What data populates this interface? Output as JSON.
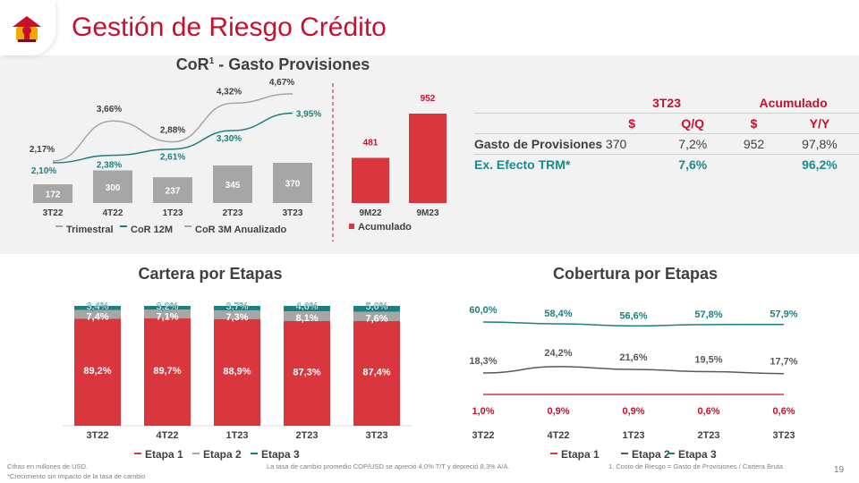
{
  "header": {
    "title": "Gestión de Riesgo Crédito"
  },
  "cor_chart": {
    "title_main": "CoR",
    "title_sup": "1",
    "title_rest": " - Gasto Provisiones"
  },
  "cartera_title": "Cartera por Etapas",
  "cobertura_title": "Cobertura por Etapas",
  "table": {
    "group1": "3T23",
    "group2": "Acumulado",
    "sub": [
      "$",
      "Q/Q",
      "$",
      "Y/Y"
    ],
    "rows": [
      {
        "label": "Gasto de Provisiones",
        "c1": "370",
        "c2": "7,2%",
        "c3": "952",
        "c4": "97,8%"
      },
      {
        "label": "Ex. Efecto TRM*",
        "c1": "",
        "c2": "7,6%",
        "c3": "",
        "c4": "96,2%"
      }
    ]
  },
  "footer": {
    "note1": "Cifras en millones de USD.",
    "note2": "*Crecimiento sin impacto de la tasa de cambio",
    "note3": "La tasa de cambio promedio COP/USD se apreció 4,0% T/T y depreció 8,3% A/A.",
    "note4": "1. Costo de Riesgo = Gasto de Provisiones / Cartera Bruta",
    "page": "19"
  },
  "colors": {
    "red": "#d9363e",
    "gray": "#a6a6a6",
    "teal": "#1b7f7f",
    "brand": "#c8102e"
  },
  "chart_data": [
    {
      "type": "bar",
      "categories": [
        "3T22",
        "4T22",
        "1T23",
        "2T23",
        "3T23"
      ],
      "series": [
        {
          "name": "Trimestral",
          "values": [
            172,
            300,
            237,
            345,
            370
          ],
          "labels": [
            "172",
            "300",
            "237",
            "345",
            "370"
          ]
        },
        {
          "name": "CoR 12M",
          "values": [
            2.1,
            2.38,
            2.61,
            3.3,
            3.95
          ],
          "labels": [
            "2,10%",
            "2,38%",
            "2,61%",
            "3,30%",
            "3,95%"
          ]
        },
        {
          "name": "CoR 3M Anualizado",
          "values": [
            2.17,
            3.66,
            2.88,
            4.32,
            4.67
          ],
          "labels": [
            "2,17%",
            "3,66%",
            "2,88%",
            "4,32%",
            "4,67%"
          ]
        }
      ]
    },
    {
      "type": "bar",
      "categories": [
        "9M22",
        "9M23"
      ],
      "series": [
        {
          "name": "Acumulado",
          "values": [
            481,
            952
          ],
          "labels": [
            "481",
            "952"
          ]
        }
      ]
    },
    {
      "type": "bar",
      "stacked": true,
      "categories": [
        "3T22",
        "4T22",
        "1T23",
        "2T23",
        "3T23"
      ],
      "series": [
        {
          "name": "Etapa 1",
          "values": [
            89.2,
            89.7,
            88.9,
            87.3,
            87.4
          ],
          "labels": [
            "89,2%",
            "89,7%",
            "88,9%",
            "87,3%",
            "87,4%"
          ]
        },
        {
          "name": "Etapa 2",
          "values": [
            7.4,
            7.1,
            7.3,
            8.1,
            7.6
          ],
          "labels": [
            "7,4%",
            "7,1%",
            "7,3%",
            "8,1%",
            "7,6%"
          ]
        },
        {
          "name": "Etapa 3",
          "values": [
            3.4,
            3.2,
            3.7,
            4.6,
            5.0
          ],
          "labels": [
            "3,4%",
            "3,2%",
            "3,7%",
            "4,6%",
            "5,0%"
          ]
        }
      ]
    },
    {
      "type": "line",
      "categories": [
        "3T22",
        "4T22",
        "1T23",
        "2T23",
        "3T23"
      ],
      "series": [
        {
          "name": "Etapa 1",
          "values": [
            1.0,
            0.9,
            0.9,
            0.6,
            0.6
          ],
          "labels": [
            "1,0%",
            "0,9%",
            "0,9%",
            "0,6%",
            "0,6%"
          ]
        },
        {
          "name": "Etapa 2",
          "values": [
            18.3,
            24.2,
            21.6,
            19.5,
            17.7
          ],
          "labels": [
            "18,3%",
            "24,2%",
            "21,6%",
            "19,5%",
            "17,7%"
          ]
        },
        {
          "name": "Etapa 3",
          "values": [
            60.0,
            58.4,
            56.6,
            57.8,
            57.9
          ],
          "labels": [
            "60,0%",
            "58,4%",
            "56,6%",
            "57,8%",
            "57,9%"
          ]
        }
      ]
    }
  ]
}
